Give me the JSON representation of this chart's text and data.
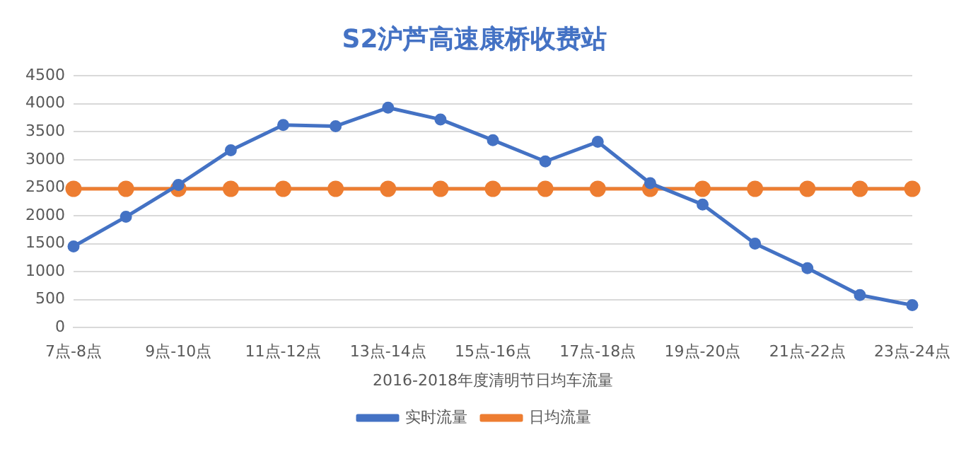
{
  "chart_data": {
    "type": "line",
    "title": "S2沪芦高速康桥收费站",
    "xlabel": "2016-2018年度清明节日均车流量",
    "categories": [
      "7点-8点",
      null,
      "9点-10点",
      null,
      "11点-12点",
      null,
      "13点-14点",
      null,
      "15点-16点",
      null,
      "17点-18点",
      null,
      "19点-20点",
      null,
      "21点-22点",
      null,
      "23点-24点"
    ],
    "series": [
      {
        "name": "实时流量",
        "color": "#4472c4",
        "values": [
          1450,
          1980,
          2550,
          3170,
          3620,
          3600,
          3930,
          3720,
          3350,
          2970,
          3320,
          2580,
          2200,
          1500,
          1060,
          580,
          400
        ]
      },
      {
        "name": "日均流量",
        "color": "#ed7d31",
        "values": [
          2480,
          2480,
          2480,
          2480,
          2480,
          2480,
          2480,
          2480,
          2480,
          2480,
          2480,
          2480,
          2480,
          2480,
          2480,
          2480,
          2480
        ]
      }
    ],
    "ylim": [
      0,
      4500
    ],
    "yticks": [
      0,
      500,
      1000,
      1500,
      2000,
      2500,
      3000,
      3500,
      4000,
      4500
    ],
    "grid": "y",
    "legend": "bottom",
    "marker": "circle",
    "line_style": "solid"
  }
}
